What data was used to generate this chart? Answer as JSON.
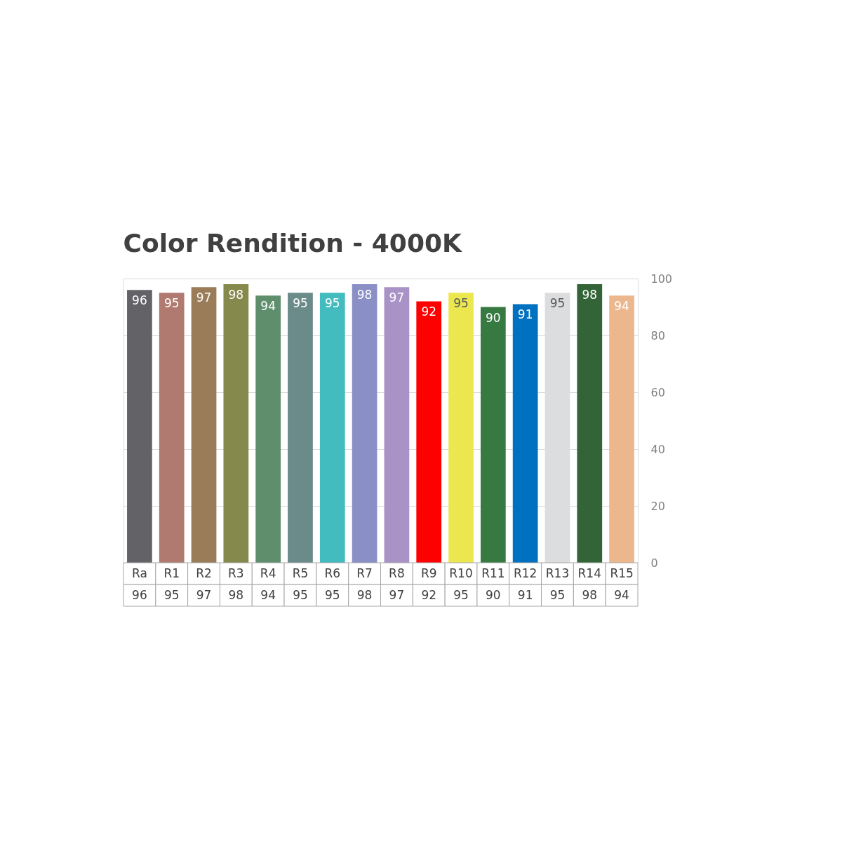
{
  "chart_data": {
    "type": "bar",
    "title": "Color Rendition - 4000K",
    "categories": [
      "Ra",
      "R1",
      "R2",
      "R3",
      "R4",
      "R5",
      "R6",
      "R7",
      "R8",
      "R9",
      "R10",
      "R11",
      "R12",
      "R13",
      "R14",
      "R15"
    ],
    "values": [
      96,
      95,
      97,
      98,
      94,
      95,
      95,
      98,
      97,
      92,
      95,
      90,
      91,
      95,
      98,
      94
    ],
    "colors": [
      "#636267",
      "#b07a70",
      "#9a7c58",
      "#85894b",
      "#5e8e6c",
      "#6a8b8a",
      "#42bcbe",
      "#8a90c6",
      "#a993c6",
      "#fe0000",
      "#ece74f",
      "#367a42",
      "#0070c0",
      "#dcdddf",
      "#336437",
      "#edb78e"
    ],
    "annotations": [
      "96",
      "95",
      "97",
      "98",
      "94",
      "95",
      "95",
      "98",
      "97",
      "92",
      "95",
      "90",
      "91",
      "95",
      "98",
      "94"
    ],
    "ylim": [
      0,
      100
    ],
    "yticks": [
      0,
      20,
      40,
      60,
      80,
      100
    ],
    "grid": "y",
    "data_labels": true
  }
}
